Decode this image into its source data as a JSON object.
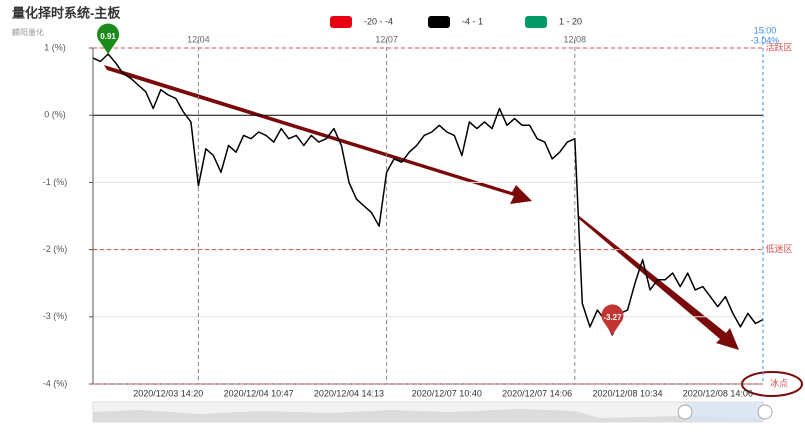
{
  "chart_data": {
    "type": "line",
    "title": "量化择时系统-主板",
    "subtitle": "麟阳量化",
    "legend": [
      {
        "name": "-20 - -4",
        "range": [
          -20,
          -4
        ],
        "color": "#e60012"
      },
      {
        "name": "-4 - 1",
        "range": [
          -4,
          1
        ],
        "color": "#000000"
      },
      {
        "name": "1 - 20",
        "range": [
          1,
          20
        ],
        "color": "#009966"
      }
    ],
    "categories": [
      null,
      null,
      null,
      null,
      null,
      null,
      null,
      null,
      null,
      null,
      "2020/12/03 14:20",
      null,
      null,
      null,
      null,
      null,
      null,
      null,
      null,
      null,
      null,
      null,
      "2020/12/04 10:47",
      null,
      null,
      null,
      null,
      null,
      null,
      null,
      null,
      null,
      null,
      null,
      "2020/12/04 14:13",
      null,
      null,
      null,
      null,
      null,
      null,
      null,
      null,
      null,
      null,
      null,
      null,
      "2020/12/07 10:40",
      null,
      null,
      null,
      null,
      null,
      null,
      null,
      null,
      null,
      null,
      null,
      "2020/12/07 14:06",
      null,
      null,
      null,
      null,
      null,
      null,
      null,
      null,
      null,
      null,
      null,
      "2020/12/08 10:34",
      null,
      null,
      null,
      null,
      null,
      null,
      null,
      null,
      null,
      null,
      null,
      "2020/12/08 14:06",
      null,
      null,
      null,
      null,
      null,
      null
    ],
    "day_categories": [
      null,
      null,
      null,
      null,
      null,
      null,
      null,
      null,
      null,
      null,
      null,
      null,
      null,
      null,
      "12/04",
      null,
      null,
      null,
      null,
      null,
      null,
      null,
      null,
      null,
      null,
      null,
      null,
      null,
      null,
      null,
      null,
      null,
      null,
      null,
      null,
      null,
      null,
      null,
      null,
      "12/07",
      null,
      null,
      null,
      null,
      null,
      null,
      null,
      null,
      null,
      null,
      null,
      null,
      null,
      null,
      null,
      null,
      null,
      null,
      null,
      null,
      null,
      null,
      null,
      null,
      "12/08",
      null,
      null,
      null,
      null,
      null,
      null,
      null,
      null,
      null,
      null,
      null,
      null,
      null,
      null,
      null,
      null,
      null,
      null,
      null,
      null,
      null,
      null,
      null,
      null
    ],
    "values": [
      0.85,
      0.8,
      0.91,
      0.78,
      0.62,
      0.55,
      0.45,
      0.35,
      0.1,
      0.38,
      0.3,
      0.25,
      0.05,
      -0.1,
      -1.05,
      -0.5,
      -0.6,
      -0.85,
      -0.45,
      -0.55,
      -0.3,
      -0.35,
      -0.25,
      -0.3,
      -0.4,
      -0.2,
      -0.35,
      -0.3,
      -0.45,
      -0.3,
      -0.4,
      -0.35,
      -0.2,
      -0.45,
      -1.0,
      -1.25,
      -1.35,
      -1.45,
      -1.65,
      -0.85,
      -0.65,
      -0.7,
      -0.55,
      -0.45,
      -0.3,
      -0.25,
      -0.15,
      -0.25,
      -0.3,
      -0.6,
      -0.1,
      -0.2,
      -0.1,
      -0.2,
      0.1,
      -0.15,
      -0.05,
      -0.15,
      -0.15,
      -0.35,
      -0.4,
      -0.65,
      -0.55,
      -0.4,
      -0.35,
      -2.8,
      -3.15,
      -2.9,
      -3.05,
      -3.27,
      -2.95,
      -2.9,
      -2.5,
      -2.15,
      -2.6,
      -2.45,
      -2.45,
      -2.35,
      -2.55,
      -2.35,
      -2.6,
      -2.55,
      -2.7,
      -2.85,
      -2.7,
      -2.95,
      -3.15,
      -2.95,
      -3.1,
      -3.04
    ],
    "annotations": [
      {
        "value": 0.91,
        "color": "#1a8a1a"
      },
      {
        "value": -3.27,
        "color": "#c23531"
      }
    ],
    "zones": [
      {
        "value": 1,
        "label": "活跃区"
      },
      {
        "value": -2,
        "label": "低迷区"
      },
      {
        "value": -4,
        "label": "冰点"
      }
    ],
    "cursor": {
      "x_label": "15:00",
      "value": -3.04,
      "value_label": "-3.04%"
    },
    "ylim": [
      -4,
      1
    ],
    "yticks": [
      {
        "value": 1,
        "label": "1 (%)"
      },
      {
        "value": 0,
        "label": "0 (%)"
      },
      {
        "value": -1,
        "label": "-1 (%)"
      },
      {
        "value": -2,
        "label": "-2 (%)"
      },
      {
        "value": -3,
        "label": "-3 (%)"
      },
      {
        "value": -4,
        "label": "-4 (%)"
      }
    ],
    "grid": true,
    "zero_line": true
  }
}
